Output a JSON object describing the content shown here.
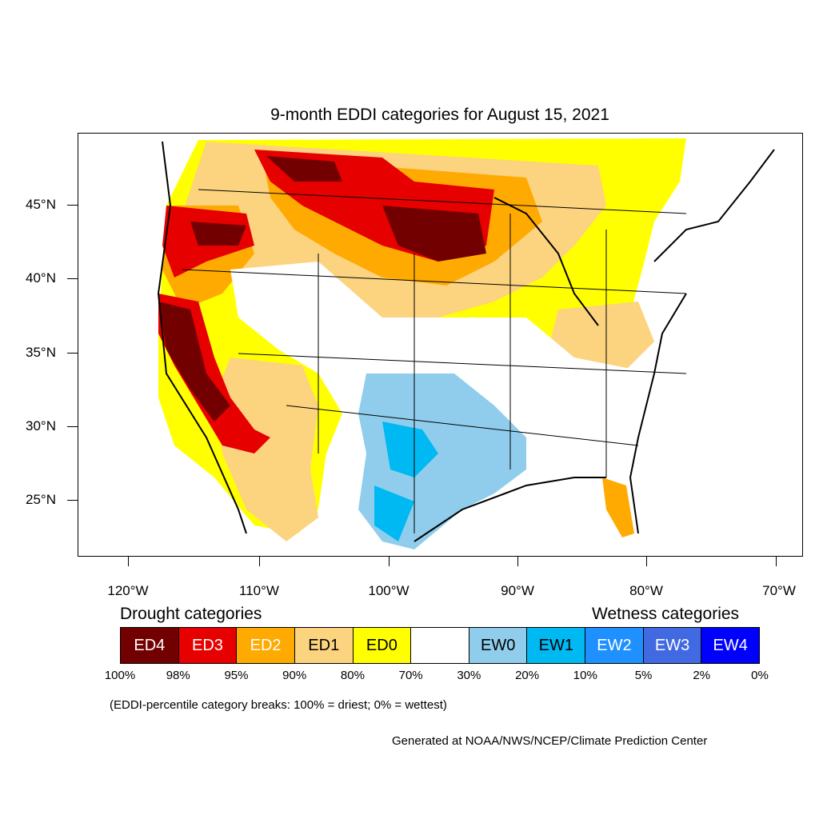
{
  "title": "9-month EDDI categories for August 15, 2021",
  "lat_labels": [
    "45°N",
    "40°N",
    "35°N",
    "30°N",
    "25°N"
  ],
  "lon_labels": [
    "120°W",
    "110°W",
    "100°W",
    "90°W",
    "80°W",
    "70°W"
  ],
  "legend": {
    "drought_heading": "Drought categories",
    "wetness_heading": "Wetness categories",
    "categories": [
      {
        "label": "ED4",
        "color": "#730000",
        "text_color": "#ffffff"
      },
      {
        "label": "ED3",
        "color": "#e60000",
        "text_color": "#ffffff"
      },
      {
        "label": "ED2",
        "color": "#ffaa00",
        "text_color": "#ffffff"
      },
      {
        "label": "ED1",
        "color": "#fcd37f",
        "text_color": "#000000"
      },
      {
        "label": "ED0",
        "color": "#ffff00",
        "text_color": "#000000"
      },
      {
        "label": "",
        "color": "#ffffff",
        "text_color": "#000000"
      },
      {
        "label": "EW0",
        "color": "#90cdec",
        "text_color": "#000000"
      },
      {
        "label": "EW1",
        "color": "#00b9f2",
        "text_color": "#000000"
      },
      {
        "label": "EW2",
        "color": "#1e90ff",
        "text_color": "#ffffff"
      },
      {
        "label": "EW3",
        "color": "#4169e1",
        "text_color": "#ffffff"
      },
      {
        "label": "EW4",
        "color": "#0000ff",
        "text_color": "#ffffff"
      }
    ],
    "breaks": [
      "100%",
      "98%",
      "95%",
      "90%",
      "80%",
      "70%",
      "30%",
      "20%",
      "10%",
      "5%",
      "2%",
      "0%"
    ]
  },
  "note": "(EDDI-percentile category breaks: 100% = driest; 0% = wettest)",
  "credit": "Generated at NOAA/NWS/NCEP/Climate Prediction Center"
}
